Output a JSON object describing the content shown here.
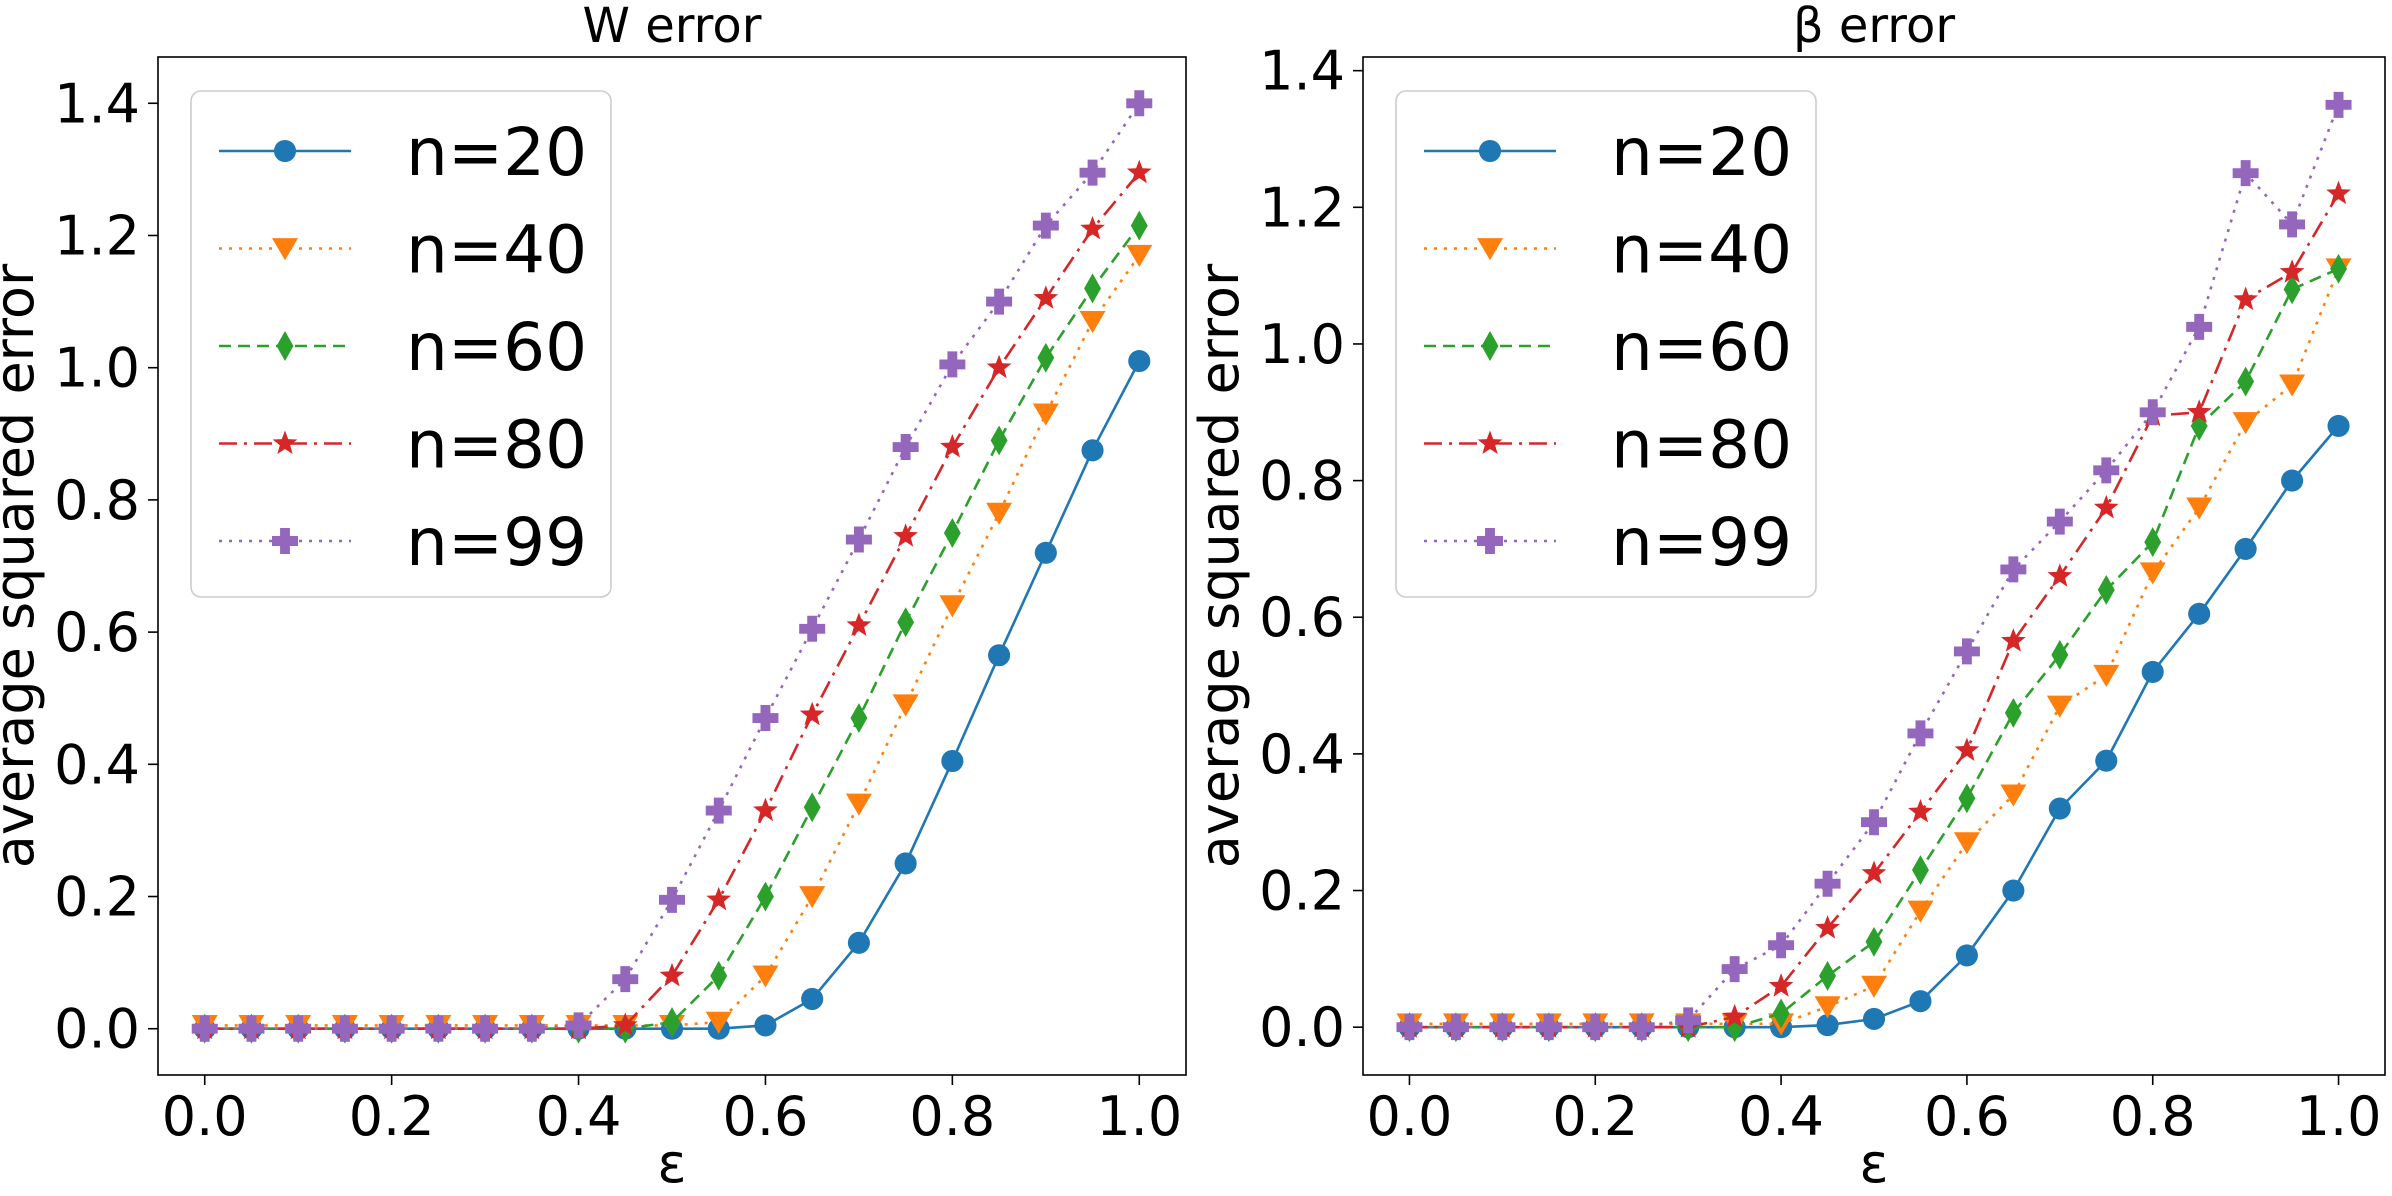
{
  "chart_data": [
    {
      "type": "line",
      "title": "W error",
      "xlabel": "ε",
      "ylabel": "average squared error",
      "xlim": [
        -0.05,
        1.05
      ],
      "ylim": [
        -0.07,
        1.47
      ],
      "xticks": [
        0.0,
        0.2,
        0.4,
        0.6,
        0.8,
        1.0
      ],
      "xtick_labels": [
        "0.0",
        "0.2",
        "0.4",
        "0.6",
        "0.8",
        "1.0"
      ],
      "yticks": [
        0.0,
        0.2,
        0.4,
        0.6,
        0.8,
        1.0,
        1.2,
        1.4
      ],
      "ytick_labels": [
        "0.0",
        "0.2",
        "0.4",
        "0.6",
        "0.8",
        "1.0",
        "1.2",
        "1.4"
      ],
      "grid": false,
      "legend": "upper left",
      "x": [
        0.0,
        0.05,
        0.1,
        0.15,
        0.2,
        0.25,
        0.3,
        0.35,
        0.4,
        0.45,
        0.5,
        0.55,
        0.6,
        0.65,
        0.7,
        0.75,
        0.8,
        0.85,
        0.9,
        0.95,
        1.0
      ],
      "series": [
        {
          "name": "n=20",
          "color": "#1f77b4",
          "marker": "circle",
          "linestyle": "solid",
          "values": [
            0,
            0,
            0,
            0,
            0,
            0,
            0,
            0,
            0,
            0,
            0,
            0,
            0.005,
            0.045,
            0.13,
            0.25,
            0.405,
            0.565,
            0.72,
            0.875,
            1.01
          ]
        },
        {
          "name": "n=40",
          "color": "#ff7f0e",
          "marker": "triangle-down",
          "linestyle": "dotted",
          "values": [
            0.005,
            0.005,
            0.005,
            0.005,
            0.005,
            0.005,
            0.005,
            0.005,
            0.005,
            0.005,
            0.005,
            0.01,
            0.08,
            0.2,
            0.34,
            0.49,
            0.64,
            0.78,
            0.93,
            1.07,
            1.17
          ]
        },
        {
          "name": "n=60",
          "color": "#2ca02c",
          "marker": "diamond",
          "linestyle": "dashed",
          "values": [
            0,
            0,
            0,
            0,
            0,
            0,
            0,
            0,
            0,
            0,
            0.01,
            0.08,
            0.2,
            0.335,
            0.47,
            0.615,
            0.75,
            0.89,
            1.015,
            1.12,
            1.215
          ]
        },
        {
          "name": "n=80",
          "color": "#d62728",
          "marker": "star",
          "linestyle": "dashdot",
          "values": [
            0,
            0,
            0,
            0,
            0,
            0,
            0,
            0,
            0,
            0.005,
            0.08,
            0.195,
            0.33,
            0.475,
            0.61,
            0.745,
            0.88,
            1.0,
            1.105,
            1.21,
            1.295
          ]
        },
        {
          "name": "n=99",
          "color": "#9467bd",
          "marker": "plus",
          "linestyle": "dotted",
          "values": [
            0,
            0,
            0,
            0,
            0,
            0,
            0,
            0,
            0.005,
            0.075,
            0.195,
            0.33,
            0.47,
            0.605,
            0.74,
            0.88,
            1.005,
            1.1,
            1.215,
            1.295,
            1.4
          ]
        }
      ]
    },
    {
      "type": "line",
      "title": "β error",
      "xlabel": "ε",
      "ylabel": "average squared error",
      "xlim": [
        -0.05,
        1.05
      ],
      "ylim": [
        -0.07,
        1.42
      ],
      "xticks": [
        0.0,
        0.2,
        0.4,
        0.6,
        0.8,
        1.0
      ],
      "xtick_labels": [
        "0.0",
        "0.2",
        "0.4",
        "0.6",
        "0.8",
        "1.0"
      ],
      "yticks": [
        0.0,
        0.2,
        0.4,
        0.6,
        0.8,
        1.0,
        1.2,
        1.4
      ],
      "ytick_labels": [
        "0.0",
        "0.2",
        "0.4",
        "0.6",
        "0.8",
        "1.0",
        "1.2",
        "1.4"
      ],
      "grid": false,
      "legend": "upper left",
      "x": [
        0.0,
        0.05,
        0.1,
        0.15,
        0.2,
        0.25,
        0.3,
        0.35,
        0.4,
        0.45,
        0.5,
        0.55,
        0.6,
        0.65,
        0.7,
        0.75,
        0.8,
        0.85,
        0.9,
        0.95,
        1.0
      ],
      "series": [
        {
          "name": "n=20",
          "color": "#1f77b4",
          "marker": "circle",
          "linestyle": "solid",
          "values": [
            0,
            0,
            0,
            0,
            0,
            0,
            0,
            0,
            0,
            0.003,
            0.012,
            0.038,
            0.105,
            0.2,
            0.32,
            0.39,
            0.52,
            0.605,
            0.7,
            0.8,
            0.88
          ]
        },
        {
          "name": "n=40",
          "color": "#ff7f0e",
          "marker": "triangle-down",
          "linestyle": "dotted",
          "values": [
            0.005,
            0.005,
            0.005,
            0.005,
            0.005,
            0.005,
            0.005,
            0.005,
            0.005,
            0.03,
            0.06,
            0.17,
            0.27,
            0.34,
            0.47,
            0.515,
            0.665,
            0.76,
            0.885,
            0.94,
            1.11
          ]
        },
        {
          "name": "n=60",
          "color": "#2ca02c",
          "marker": "diamond",
          "linestyle": "dashed",
          "values": [
            0,
            0,
            0,
            0,
            0,
            0,
            0,
            0,
            0.02,
            0.075,
            0.125,
            0.23,
            0.335,
            0.46,
            0.545,
            0.64,
            0.71,
            0.88,
            0.945,
            1.08,
            1.11
          ]
        },
        {
          "name": "n=80",
          "color": "#d62728",
          "marker": "star",
          "linestyle": "dashdot",
          "values": [
            0,
            0,
            0,
            0,
            0,
            0,
            0,
            0.015,
            0.06,
            0.145,
            0.225,
            0.315,
            0.405,
            0.565,
            0.66,
            0.76,
            0.895,
            0.9,
            1.065,
            1.105,
            1.22
          ]
        },
        {
          "name": "n=99",
          "color": "#9467bd",
          "marker": "plus",
          "linestyle": "dotted",
          "values": [
            0,
            0,
            0,
            0,
            0,
            0,
            0.01,
            0.085,
            0.12,
            0.21,
            0.3,
            0.43,
            0.55,
            0.67,
            0.74,
            0.815,
            0.9,
            1.025,
            1.25,
            1.175,
            1.35
          ]
        }
      ]
    }
  ]
}
